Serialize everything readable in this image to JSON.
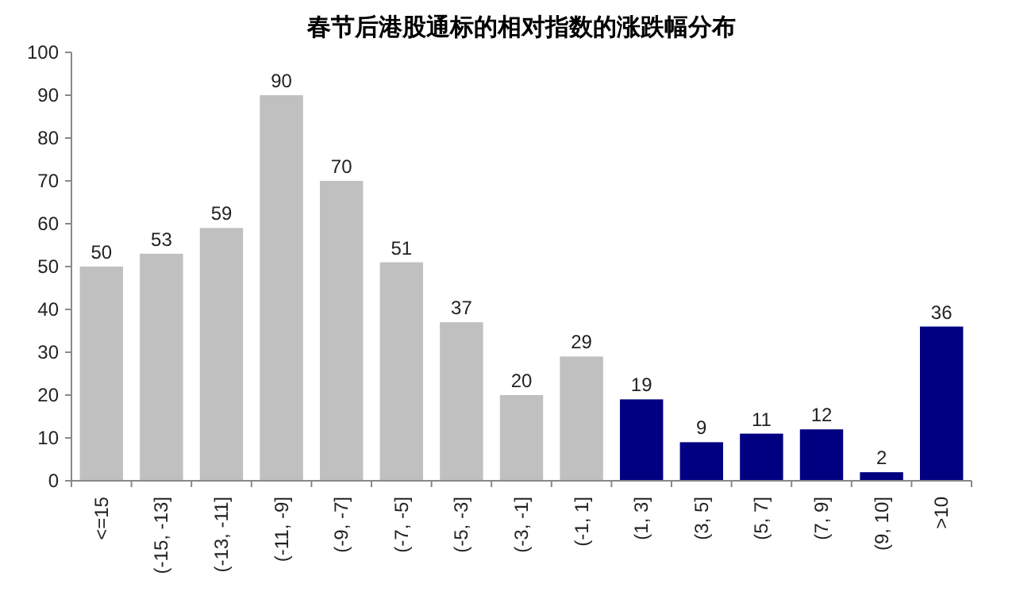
{
  "chart_data": {
    "type": "bar",
    "title": "春节后港股通标的相对指数的涨跌幅分布",
    "categories": [
      "<=15",
      "(-15, -13]",
      "(-13, -11]",
      "(-11, -9]",
      "(-9, -7]",
      "(-7, -5]",
      "(-5, -3]",
      "(-3, -1]",
      "(-1, 1]",
      "(1, 3]",
      "(3, 5]",
      "(5, 7]",
      "(7, 9]",
      "(9, 10]",
      ">10"
    ],
    "values": [
      50,
      53,
      59,
      90,
      70,
      51,
      37,
      20,
      29,
      19,
      9,
      11,
      12,
      2,
      36
    ],
    "colors": [
      "#c0c0c0",
      "#c0c0c0",
      "#c0c0c0",
      "#c0c0c0",
      "#c0c0c0",
      "#c0c0c0",
      "#c0c0c0",
      "#c0c0c0",
      "#c0c0c0",
      "#000080",
      "#000080",
      "#000080",
      "#000080",
      "#000080",
      "#000080"
    ],
    "ylim": [
      0,
      100
    ],
    "yticks": [
      0,
      10,
      20,
      30,
      40,
      50,
      60,
      70,
      80,
      90,
      100
    ],
    "data_labels": true
  }
}
